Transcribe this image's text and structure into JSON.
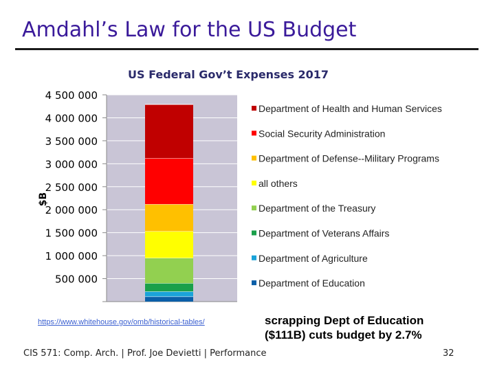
{
  "slide": {
    "title": "Amdahl’s Law for the US Budget",
    "source_link": "https://www.whitehouse.gov/omb/historical-tables/",
    "callout": "scrapping Dept of Education ($111B) cuts budget by 2.7%",
    "footer": "CIS 571: Comp. Arch.  |  Prof. Joe Devietti  |  Performance",
    "page_number": "32"
  },
  "chart_data": {
    "type": "bar",
    "stacked": true,
    "title": "US Federal Gov’t Expenses 2017",
    "ylabel": "$B",
    "ylim": [
      0,
      4500000
    ],
    "yticks": [
      500000,
      1000000,
      1500000,
      2000000,
      2500000,
      3000000,
      3500000,
      4000000,
      4500000
    ],
    "ytick_labels": [
      "500 000",
      "1 000 000",
      "1 500 000",
      "2 000 000",
      "2 500 000",
      "3 000 000",
      "3 500 000",
      "4 000 000",
      "4 500 000"
    ],
    "legend_position": "right",
    "series": [
      {
        "name": "Department of Education",
        "value": 111000,
        "color": "#0b5fa8"
      },
      {
        "name": "Department of Agriculture",
        "value": 110000,
        "color": "#1aa3d9"
      },
      {
        "name": "Department of Veterans Affairs",
        "value": 180000,
        "color": "#1aa04a"
      },
      {
        "name": "Department of the Treasury",
        "value": 550000,
        "color": "#92d050"
      },
      {
        "name": "all others",
        "value": 580000,
        "color": "#ffff00"
      },
      {
        "name": "Department of Defense--Military Programs",
        "value": 590000,
        "color": "#ffc000"
      },
      {
        "name": "Social Security Administration",
        "value": 1000000,
        "color": "#ff0000"
      },
      {
        "name": "Department of Health and Human Services",
        "value": 1170000,
        "color": "#c00000"
      }
    ],
    "colors": {
      "plot_background": "#c9c5d6",
      "axis": "#888888"
    }
  }
}
